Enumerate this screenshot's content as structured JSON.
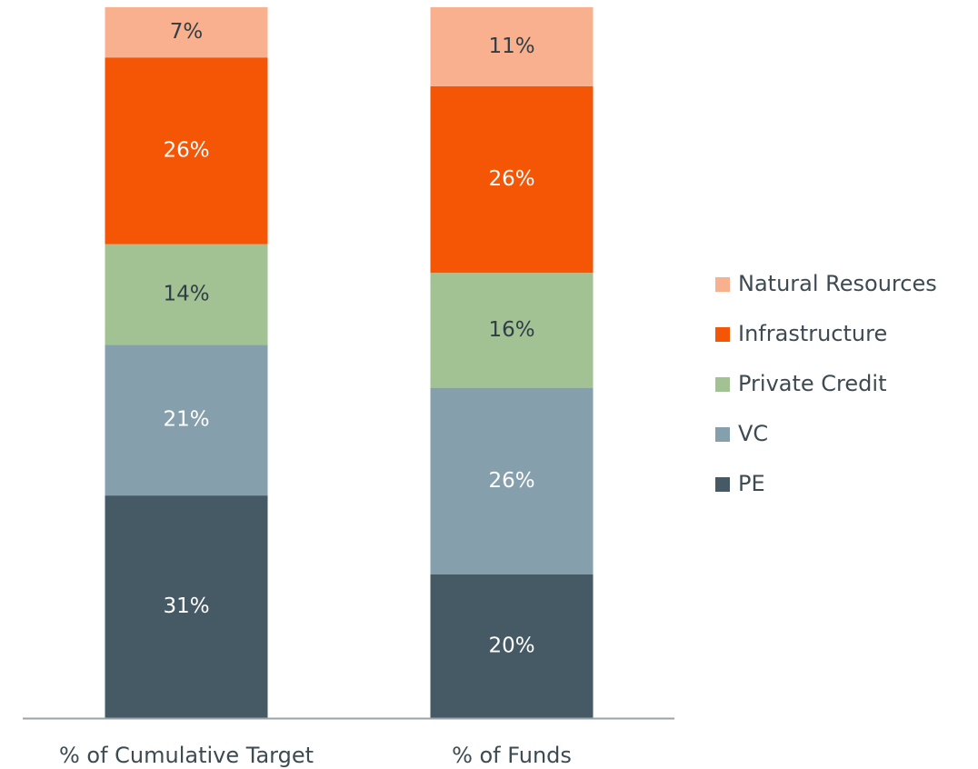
{
  "chart_data": {
    "type": "stacked_bar",
    "categories": [
      "% of Cumulative Target",
      "% of Funds"
    ],
    "series": [
      {
        "name": "PE",
        "color": "#465a65",
        "label_color": "#ffffff",
        "values": [
          31,
          20
        ],
        "value_labels": [
          "31%",
          "20%"
        ]
      },
      {
        "name": "VC",
        "color": "#869fac",
        "label_color": "#ffffff",
        "values": [
          21,
          26
        ],
        "value_labels": [
          "21%",
          "26%"
        ]
      },
      {
        "name": "Private Credit",
        "color": "#a3c293",
        "label_color": "#2f3e46",
        "values": [
          14,
          16
        ],
        "value_labels": [
          "14%",
          "16%"
        ]
      },
      {
        "name": "Infrastructure",
        "color": "#f55605",
        "label_color": "#ffffff",
        "values": [
          26,
          26
        ],
        "value_labels": [
          "26%",
          "26%"
        ]
      },
      {
        "name": "Natural Resources",
        "color": "#f9b08e",
        "label_color": "#2f3e46",
        "values": [
          7,
          11
        ],
        "value_labels": [
          "7%",
          "11%"
        ]
      }
    ],
    "ylim": [
      0,
      100
    ],
    "legend": "right"
  }
}
